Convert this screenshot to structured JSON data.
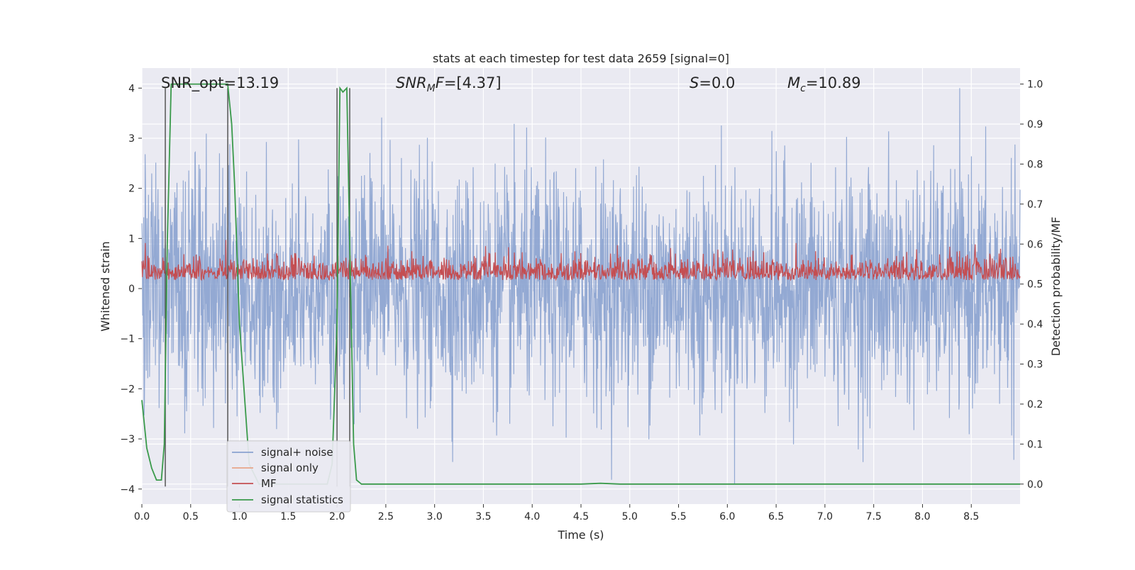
{
  "chart_data": {
    "type": "line",
    "title": "stats at each timestep for test data 2659 [signal=0]",
    "xlabel": "Time (s)",
    "ylabel_left": "Whitened strain",
    "ylabel_right": "Detection probability/MF",
    "xlim": [
      0.0,
      9.0
    ],
    "ylim_left": [
      -4.3,
      4.4
    ],
    "ylim_right": [
      -0.05,
      1.04
    ],
    "x_ticks": [
      0.0,
      0.5,
      1.0,
      1.5,
      2.0,
      2.5,
      3.0,
      3.5,
      4.0,
      4.5,
      5.0,
      5.5,
      6.0,
      6.5,
      7.0,
      7.5,
      8.0,
      8.5
    ],
    "x_tick_labels": [
      "0.0",
      "0.5",
      "1.0",
      "1.5",
      "2.0",
      "2.5",
      "3.0",
      "3.5",
      "4.0",
      "4.5",
      "5.0",
      "5.5",
      "6.0",
      "6.5",
      "7.0",
      "7.5",
      "8.0",
      "8.5"
    ],
    "y_ticks_left": [
      -4,
      -3,
      -2,
      -1,
      0,
      1,
      2,
      3,
      4
    ],
    "y_tick_labels_left": [
      "−4",
      "−3",
      "−2",
      "−1",
      "0",
      "1",
      "2",
      "3",
      "4"
    ],
    "y_ticks_right": [
      0.0,
      0.1,
      0.2,
      0.3,
      0.4,
      0.5,
      0.6,
      0.7,
      0.8,
      0.9,
      1.0
    ],
    "y_tick_labels_right": [
      "0.0",
      "0.1",
      "0.2",
      "0.3",
      "0.4",
      "0.5",
      "0.6",
      "0.7",
      "0.8",
      "0.9",
      "1.0"
    ],
    "grid": true,
    "legend_position": "lower-left",
    "annotations": [
      {
        "text": "SNR_opt=13.19",
        "x": 0.2
      },
      {
        "text": "SNR_MF=[4.37]",
        "x": 2.6
      },
      {
        "text": "S=0.0",
        "x": 5.6
      },
      {
        "text": "M_c=10.89",
        "x": 6.6
      }
    ],
    "series": [
      {
        "name": "signal+ noise",
        "axis": "left",
        "color": "#8aa2cf",
        "description_values": {
          "n_points": 2400,
          "typical_range": [
            -2.5,
            2.5
          ],
          "peak_max": 4.0,
          "peak_min": -3.9
        }
      },
      {
        "name": "signal only",
        "axis": "left",
        "color": "#e8a58a",
        "values": []
      },
      {
        "name": "MF",
        "axis": "right",
        "color": "#c44e52",
        "description_values": {
          "n_points": 1800,
          "baseline": 0.51,
          "typical_max": 0.59,
          "peak_max": 0.62
        }
      },
      {
        "name": "signal statistics",
        "axis": "right",
        "color": "#3a9a4b",
        "x": [
          0.0,
          0.05,
          0.1,
          0.15,
          0.2,
          0.23,
          0.26,
          0.3,
          0.35,
          0.4,
          0.5,
          0.6,
          0.7,
          0.8,
          0.88,
          0.92,
          0.95,
          1.0,
          1.1,
          1.2,
          1.3,
          1.4,
          1.5,
          1.6,
          1.7,
          1.8,
          1.9,
          1.95,
          2.0,
          2.03,
          2.06,
          2.1,
          2.13,
          2.17,
          2.2,
          2.25,
          2.4,
          3.0,
          3.5,
          4.0,
          4.5,
          4.7,
          4.9,
          5.5,
          6.0,
          6.5,
          7.0,
          7.5,
          8.0,
          8.5,
          9.0
        ],
        "values": [
          0.21,
          0.09,
          0.04,
          0.01,
          0.01,
          0.1,
          0.6,
          1.0,
          1.0,
          1.0,
          1.0,
          1.0,
          1.0,
          1.0,
          1.0,
          0.9,
          0.75,
          0.4,
          0.05,
          0.0,
          0.0,
          0.0,
          0.0,
          0.0,
          0.0,
          0.0,
          0.0,
          0.05,
          0.4,
          0.99,
          0.98,
          0.99,
          0.6,
          0.1,
          0.01,
          0.0,
          0.0,
          0.0,
          0.0,
          0.0,
          0.0,
          0.002,
          0.0,
          0.0,
          0.0,
          0.0,
          0.0,
          0.0,
          0.0,
          0.0,
          0.0
        ]
      }
    ],
    "vertical_markers_x": [
      0.24,
      0.88,
      2.0,
      2.13
    ]
  }
}
